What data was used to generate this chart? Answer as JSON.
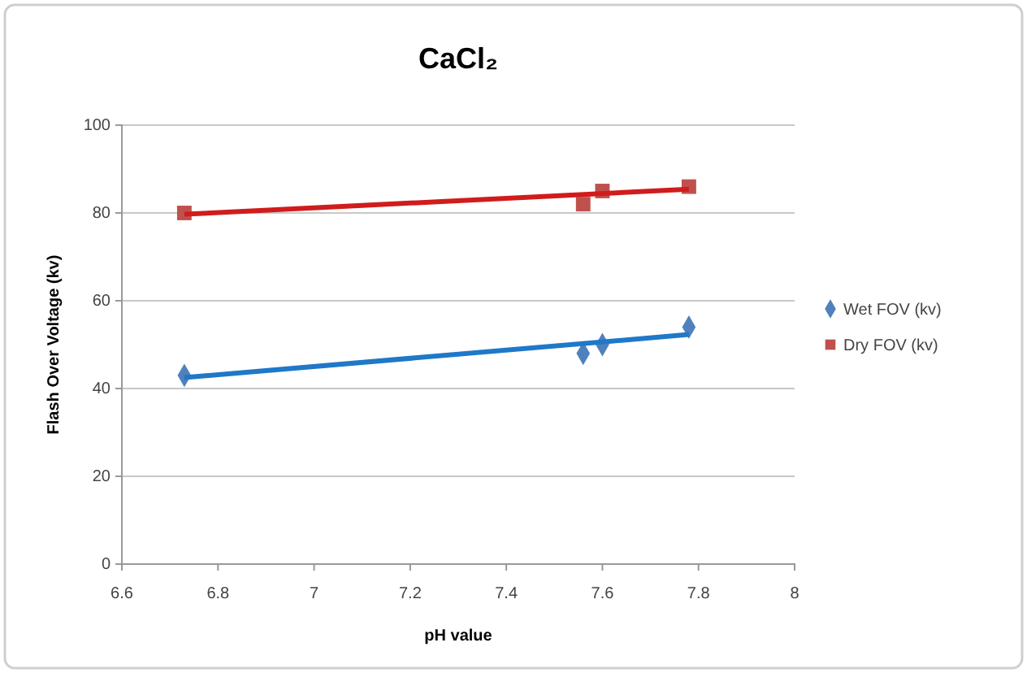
{
  "chart_data": {
    "type": "scatter",
    "title": "CaCl₂",
    "xlabel": "pH value",
    "ylabel": "Flash Over Voltage (kv)",
    "xlim": [
      6.6,
      8
    ],
    "xticks": [
      6.6,
      6.8,
      7,
      7.2,
      7.4,
      7.6,
      7.8,
      8
    ],
    "ylim": [
      0,
      100
    ],
    "yticks": [
      0,
      20,
      40,
      60,
      80,
      100
    ],
    "grid": "y",
    "legend": "right",
    "series": [
      {
        "name": "Wet FOV (kv)",
        "marker": "diamond",
        "color": "#4f81bd",
        "x": [
          6.73,
          7.56,
          7.6,
          7.78
        ],
        "values": [
          43,
          48,
          50,
          54
        ]
      },
      {
        "name": "Dry FOV (kv)",
        "marker": "square",
        "color": "#c0504d",
        "x": [
          6.73,
          7.56,
          7.6,
          7.78
        ],
        "values": [
          80,
          82,
          85,
          86
        ]
      },
      {
        "type": "line",
        "marker": "none",
        "color": "#1f78c8",
        "x": [
          6.73,
          7.78
        ],
        "values": [
          42.5,
          52.3
        ]
      },
      {
        "type": "line",
        "marker": "none",
        "color": "#d01c1c",
        "x": [
          6.73,
          7.78
        ],
        "values": [
          79.7,
          85.4
        ]
      }
    ]
  }
}
